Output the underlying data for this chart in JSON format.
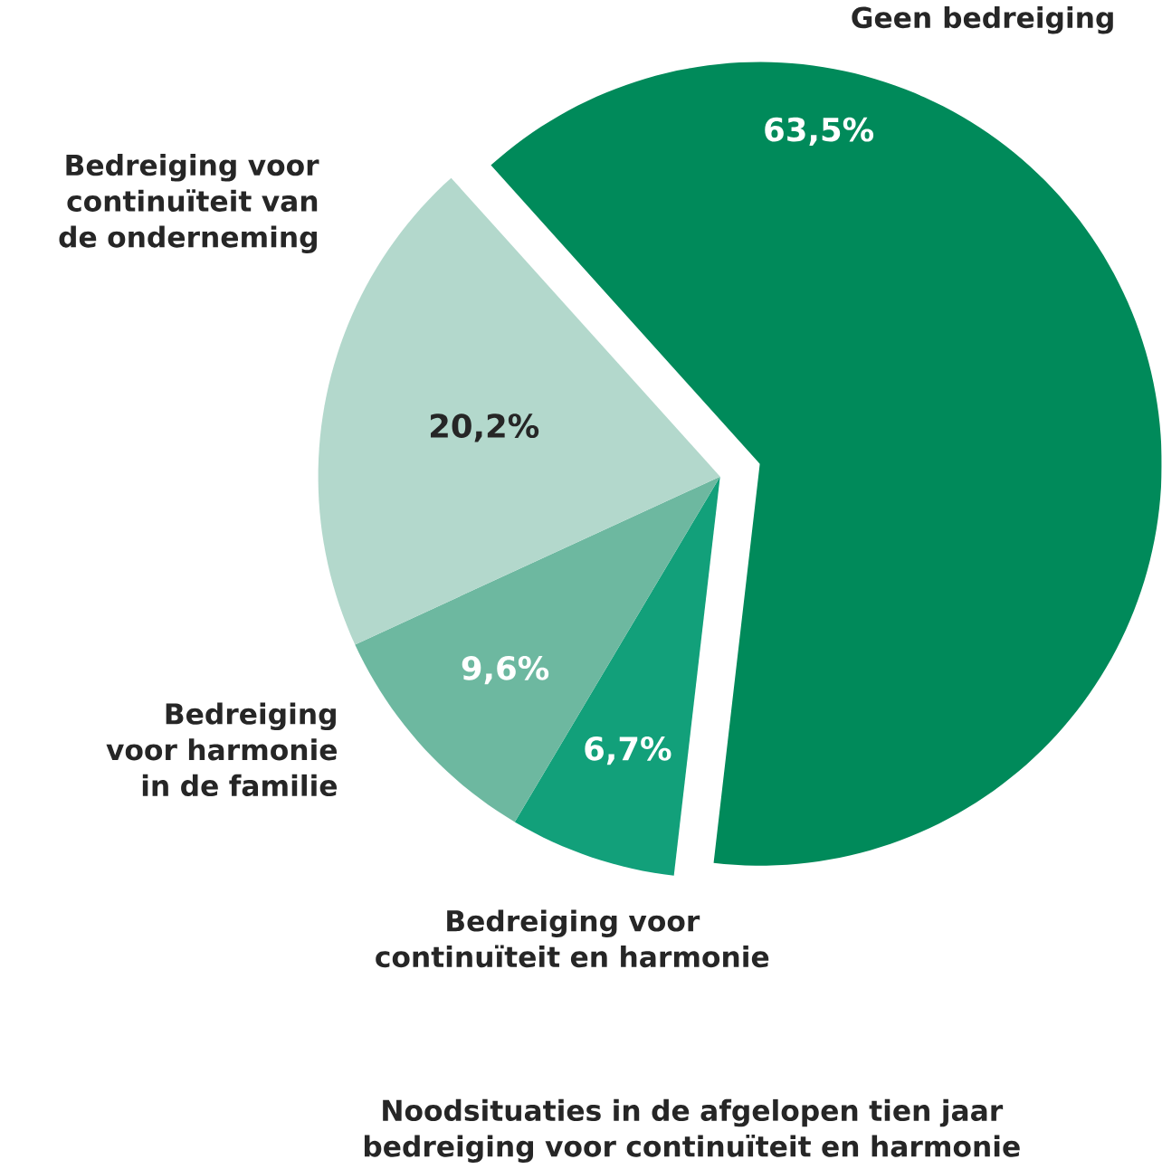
{
  "chart_data": {
    "type": "pie",
    "title": "Noodsituaties in de afgelopen tien jaar bedreiging voor continuïteit en harmonie",
    "categories": [
      "Geen bedreiging",
      "Bedreiging voor continuïteit en harmonie",
      "Bedreiging voor harmonie in de familie",
      "Bedreiging voor continuïteit van de onderneming"
    ],
    "values": [
      63.5,
      6.7,
      9.6,
      20.2
    ],
    "value_labels": [
      "63,5%",
      "6,7%",
      "9,6%",
      "20,2%"
    ],
    "colors": [
      "#008a5a",
      "#12a07a",
      "#6db8a0",
      "#b3d8cc"
    ]
  }
}
